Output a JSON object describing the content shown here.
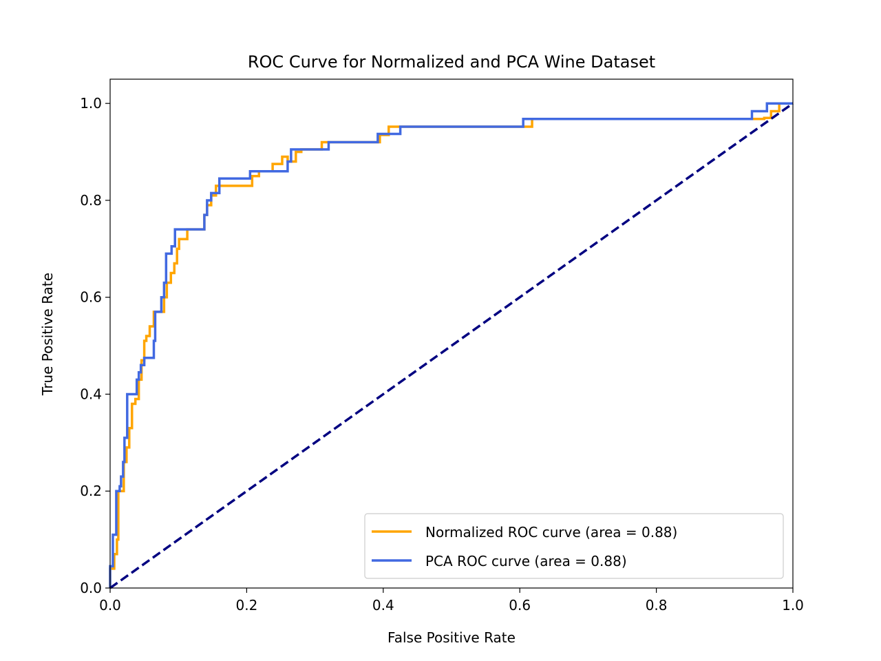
{
  "chart_data": {
    "type": "line",
    "title": "ROC Curve for Normalized and PCA Wine Dataset",
    "xlabel": "False Positive Rate",
    "ylabel": "True Positive Rate",
    "xlim": [
      0.0,
      1.0
    ],
    "ylim": [
      0.0,
      1.05
    ],
    "xticks": [
      0.0,
      0.2,
      0.4,
      0.6,
      0.8,
      1.0
    ],
    "yticks": [
      0.0,
      0.2,
      0.4,
      0.6,
      0.8,
      1.0
    ],
    "xtick_labels": [
      "0.0",
      "0.2",
      "0.4",
      "0.6",
      "0.8",
      "1.0"
    ],
    "ytick_labels": [
      "0.0",
      "0.2",
      "0.4",
      "0.6",
      "0.8",
      "1.0"
    ],
    "grid": false,
    "legend": {
      "placement": "lower-right",
      "entries": [
        {
          "label": "Normalized ROC curve (area = 0.88)",
          "color": "#ffa500"
        },
        {
          "label": "PCA ROC curve (area = 0.88)",
          "color": "#4169e1"
        }
      ]
    },
    "series": [
      {
        "label": "Normalized ROC curve (area = 0.88)",
        "color": "#ffa500",
        "linestyle": "solid",
        "points": [
          [
            0.0,
            0.0
          ],
          [
            0.0,
            0.04
          ],
          [
            0.006,
            0.04
          ],
          [
            0.006,
            0.07
          ],
          [
            0.01,
            0.07
          ],
          [
            0.01,
            0.1
          ],
          [
            0.012,
            0.1
          ],
          [
            0.012,
            0.2
          ],
          [
            0.02,
            0.2
          ],
          [
            0.02,
            0.26
          ],
          [
            0.024,
            0.26
          ],
          [
            0.024,
            0.29
          ],
          [
            0.028,
            0.29
          ],
          [
            0.028,
            0.33
          ],
          [
            0.032,
            0.33
          ],
          [
            0.032,
            0.38
          ],
          [
            0.037,
            0.38
          ],
          [
            0.037,
            0.39
          ],
          [
            0.042,
            0.39
          ],
          [
            0.042,
            0.43
          ],
          [
            0.046,
            0.43
          ],
          [
            0.046,
            0.47
          ],
          [
            0.05,
            0.47
          ],
          [
            0.05,
            0.51
          ],
          [
            0.053,
            0.51
          ],
          [
            0.053,
            0.52
          ],
          [
            0.058,
            0.52
          ],
          [
            0.058,
            0.54
          ],
          [
            0.064,
            0.54
          ],
          [
            0.064,
            0.57
          ],
          [
            0.079,
            0.57
          ],
          [
            0.079,
            0.6
          ],
          [
            0.083,
            0.6
          ],
          [
            0.083,
            0.63
          ],
          [
            0.089,
            0.63
          ],
          [
            0.089,
            0.65
          ],
          [
            0.094,
            0.65
          ],
          [
            0.094,
            0.67
          ],
          [
            0.098,
            0.67
          ],
          [
            0.098,
            0.7
          ],
          [
            0.101,
            0.7
          ],
          [
            0.101,
            0.72
          ],
          [
            0.113,
            0.72
          ],
          [
            0.113,
            0.74
          ],
          [
            0.138,
            0.74
          ],
          [
            0.138,
            0.77
          ],
          [
            0.142,
            0.77
          ],
          [
            0.142,
            0.79
          ],
          [
            0.148,
            0.79
          ],
          [
            0.148,
            0.81
          ],
          [
            0.155,
            0.81
          ],
          [
            0.155,
            0.83
          ],
          [
            0.208,
            0.83
          ],
          [
            0.208,
            0.85
          ],
          [
            0.218,
            0.85
          ],
          [
            0.218,
            0.86
          ],
          [
            0.238,
            0.86
          ],
          [
            0.238,
            0.875
          ],
          [
            0.252,
            0.875
          ],
          [
            0.252,
            0.89
          ],
          [
            0.26,
            0.89
          ],
          [
            0.26,
            0.88
          ],
          [
            0.272,
            0.88
          ],
          [
            0.272,
            0.9
          ],
          [
            0.28,
            0.9
          ],
          [
            0.28,
            0.905
          ],
          [
            0.31,
            0.905
          ],
          [
            0.31,
            0.92
          ],
          [
            0.395,
            0.92
          ],
          [
            0.395,
            0.935
          ],
          [
            0.408,
            0.935
          ],
          [
            0.408,
            0.952
          ],
          [
            0.42,
            0.952
          ],
          [
            0.42,
            0.952
          ],
          [
            0.618,
            0.952
          ],
          [
            0.618,
            0.968
          ],
          [
            0.955,
            0.968
          ],
          [
            0.955,
            0.968
          ],
          [
            0.958,
            0.968
          ],
          [
            0.958,
            0.97
          ],
          [
            0.968,
            0.97
          ],
          [
            0.968,
            0.984
          ],
          [
            0.98,
            0.984
          ],
          [
            0.98,
            1.0
          ],
          [
            1.0,
            1.0
          ]
        ]
      },
      {
        "label": "PCA ROC curve (area = 0.88)",
        "color": "#4169e1",
        "linestyle": "solid",
        "points": [
          [
            0.0,
            0.0
          ],
          [
            0.0,
            0.045
          ],
          [
            0.004,
            0.045
          ],
          [
            0.004,
            0.11
          ],
          [
            0.009,
            0.11
          ],
          [
            0.009,
            0.2
          ],
          [
            0.014,
            0.2
          ],
          [
            0.014,
            0.21
          ],
          [
            0.016,
            0.21
          ],
          [
            0.016,
            0.23
          ],
          [
            0.019,
            0.23
          ],
          [
            0.019,
            0.26
          ],
          [
            0.021,
            0.26
          ],
          [
            0.021,
            0.31
          ],
          [
            0.025,
            0.31
          ],
          [
            0.025,
            0.4
          ],
          [
            0.035,
            0.4
          ],
          [
            0.035,
            0.4
          ],
          [
            0.039,
            0.4
          ],
          [
            0.039,
            0.43
          ],
          [
            0.042,
            0.43
          ],
          [
            0.042,
            0.445
          ],
          [
            0.045,
            0.445
          ],
          [
            0.045,
            0.46
          ],
          [
            0.05,
            0.46
          ],
          [
            0.05,
            0.475
          ],
          [
            0.064,
            0.475
          ],
          [
            0.064,
            0.51
          ],
          [
            0.066,
            0.51
          ],
          [
            0.066,
            0.57
          ],
          [
            0.075,
            0.57
          ],
          [
            0.075,
            0.6
          ],
          [
            0.079,
            0.6
          ],
          [
            0.079,
            0.63
          ],
          [
            0.082,
            0.63
          ],
          [
            0.082,
            0.69
          ],
          [
            0.09,
            0.69
          ],
          [
            0.09,
            0.705
          ],
          [
            0.095,
            0.705
          ],
          [
            0.095,
            0.74
          ],
          [
            0.138,
            0.74
          ],
          [
            0.138,
            0.77
          ],
          [
            0.142,
            0.77
          ],
          [
            0.142,
            0.8
          ],
          [
            0.148,
            0.8
          ],
          [
            0.148,
            0.815
          ],
          [
            0.16,
            0.815
          ],
          [
            0.16,
            0.845
          ],
          [
            0.205,
            0.845
          ],
          [
            0.205,
            0.86
          ],
          [
            0.26,
            0.86
          ],
          [
            0.26,
            0.88
          ],
          [
            0.265,
            0.88
          ],
          [
            0.265,
            0.905
          ],
          [
            0.32,
            0.905
          ],
          [
            0.32,
            0.92
          ],
          [
            0.392,
            0.92
          ],
          [
            0.392,
            0.937
          ],
          [
            0.425,
            0.937
          ],
          [
            0.425,
            0.952
          ],
          [
            0.605,
            0.952
          ],
          [
            0.605,
            0.968
          ],
          [
            0.94,
            0.968
          ],
          [
            0.94,
            0.984
          ],
          [
            0.962,
            0.984
          ],
          [
            0.962,
            1.0
          ],
          [
            1.0,
            1.0
          ]
        ]
      },
      {
        "label": "",
        "color": "#000080",
        "linestyle": "dashed",
        "points": [
          [
            0.0,
            0.0
          ],
          [
            1.0,
            1.0
          ]
        ]
      }
    ]
  }
}
